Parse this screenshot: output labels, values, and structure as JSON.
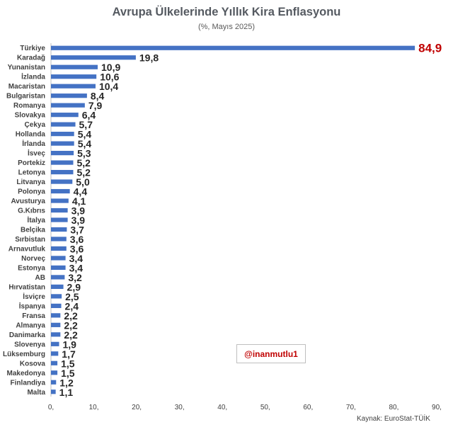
{
  "title": "Avrupa Ülkelerinde Yıllık Kira Enflasyonu",
  "subtitle": "(%, Mayıs 2025)",
  "watermark": "@inanmutlu1",
  "source": "Kaynak: EuroStat-TÜİK",
  "colors": {
    "bar": "#4472c4",
    "highlight_label": "#c00000",
    "label": "#262626"
  },
  "chart_data": {
    "type": "bar",
    "orientation": "horizontal",
    "title": "Avrupa Ülkelerinde Yıllık Kira Enflasyonu",
    "subtitle": "(%, Mayıs 2025)",
    "xlabel": "",
    "ylabel": "",
    "xlim": [
      0,
      90
    ],
    "xticks": [
      "0,",
      "10,",
      "20,",
      "30,",
      "40,",
      "50,",
      "60,",
      "70,",
      "80,",
      "90,"
    ],
    "grid": false,
    "categories": [
      "Türkiye",
      "Karadağ",
      "Yunanistan",
      "İzlanda",
      "Macaristan",
      "Bulgaristan",
      "Romanya",
      "Slovakya",
      "Çekya",
      "Hollanda",
      "İrlanda",
      "İsveç",
      "Portekiz",
      "Letonya",
      "Litvanya",
      "Polonya",
      "Avusturya",
      "G.Kıbrıs",
      "İtalya",
      "Belçika",
      "Sırbistan",
      "Arnavutluk",
      "Norveç",
      "Estonya",
      "AB",
      "Hırvatistan",
      "İsviçre",
      "İspanya",
      "Fransa",
      "Almanya",
      "Danimarka",
      "Slovenya",
      "Lüksemburg",
      "Kosova",
      "Makedonya",
      "Finlandiya",
      "Malta"
    ],
    "values": [
      84.9,
      19.8,
      10.9,
      10.6,
      10.4,
      8.4,
      7.9,
      6.4,
      5.7,
      5.4,
      5.4,
      5.3,
      5.2,
      5.2,
      5.0,
      4.4,
      4.1,
      3.9,
      3.9,
      3.7,
      3.6,
      3.6,
      3.4,
      3.4,
      3.2,
      2.9,
      2.5,
      2.4,
      2.2,
      2.2,
      2.2,
      1.9,
      1.7,
      1.5,
      1.5,
      1.2,
      1.1
    ],
    "data_labels": [
      "84,9",
      "19,8",
      "10,9",
      "10,6",
      "10,4",
      "8,4",
      "7,9",
      "6,4",
      "5,7",
      "5,4",
      "5,4",
      "5,3",
      "5,2",
      "5,2",
      "5,0",
      "4,4",
      "4,1",
      "3,9",
      "3,9",
      "3,7",
      "3,6",
      "3,6",
      "3,4",
      "3,4",
      "3,2",
      "2,9",
      "2,5",
      "2,4",
      "2,2",
      "2,2",
      "2,2",
      "1,9",
      "1,7",
      "1,5",
      "1,5",
      "1,2",
      "1,1"
    ]
  }
}
